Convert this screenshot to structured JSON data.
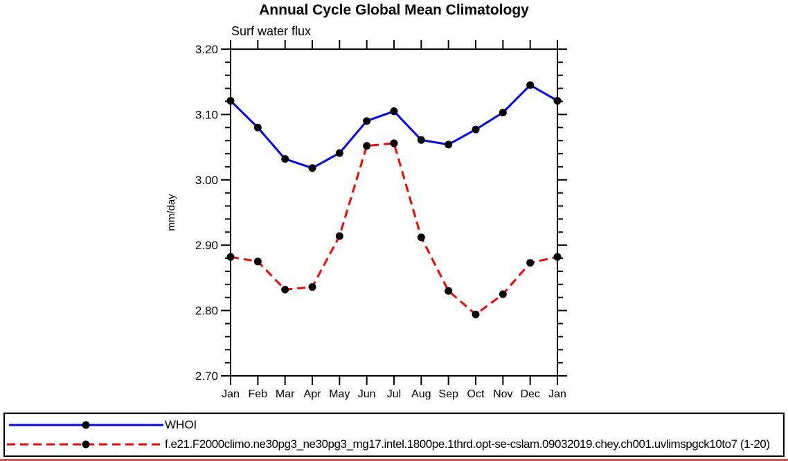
{
  "page": {
    "title": "Annual Cycle Global Mean Climatology",
    "subtitle": "Surf water flux"
  },
  "chart_data": {
    "type": "line",
    "title": "Annual Cycle Global Mean Climatology",
    "subtitle": "Surf water flux",
    "xlabel": "",
    "ylabel": "mm/day",
    "categories": [
      "Jan",
      "Feb",
      "Mar",
      "Apr",
      "May",
      "Jun",
      "Jul",
      "Aug",
      "Sep",
      "Oct",
      "Nov",
      "Dec",
      "Jan"
    ],
    "ylim": [
      2.7,
      3.2
    ],
    "yticks": [
      {
        "v": 3.2,
        "label": "3.20"
      },
      {
        "v": 3.1,
        "label": "3.10"
      },
      {
        "v": 3.0,
        "label": "3.00"
      },
      {
        "v": 2.9,
        "label": "2.90"
      },
      {
        "v": 2.8,
        "label": "2.80"
      },
      {
        "v": 2.7,
        "label": "2.70"
      }
    ],
    "yminor_step": 0.02,
    "grid": false,
    "legend_position": "bottom-left",
    "frame_color": "#000000",
    "marker_color": "#000000",
    "series": [
      {
        "name": "WHOI",
        "color": "#0000ff",
        "style": "solid",
        "marker": "circle",
        "values": [
          3.121,
          3.08,
          3.032,
          3.018,
          3.041,
          3.09,
          3.105,
          3.061,
          3.054,
          3.077,
          3.103,
          3.145,
          3.121
        ]
      },
      {
        "name": "f.e21.F2000climo.ne30pg3_ne30pg3_mg17.intel.1800pe.1thrd.opt-se-cslam.09032019.chey.ch001.uvlimspgck10to7 (1-20)",
        "color": "#ff0000",
        "style": "dashed",
        "marker": "circle",
        "values": [
          2.882,
          2.875,
          2.832,
          2.836,
          2.914,
          3.052,
          3.056,
          2.912,
          2.83,
          2.794,
          2.825,
          2.873,
          2.882
        ]
      }
    ]
  }
}
